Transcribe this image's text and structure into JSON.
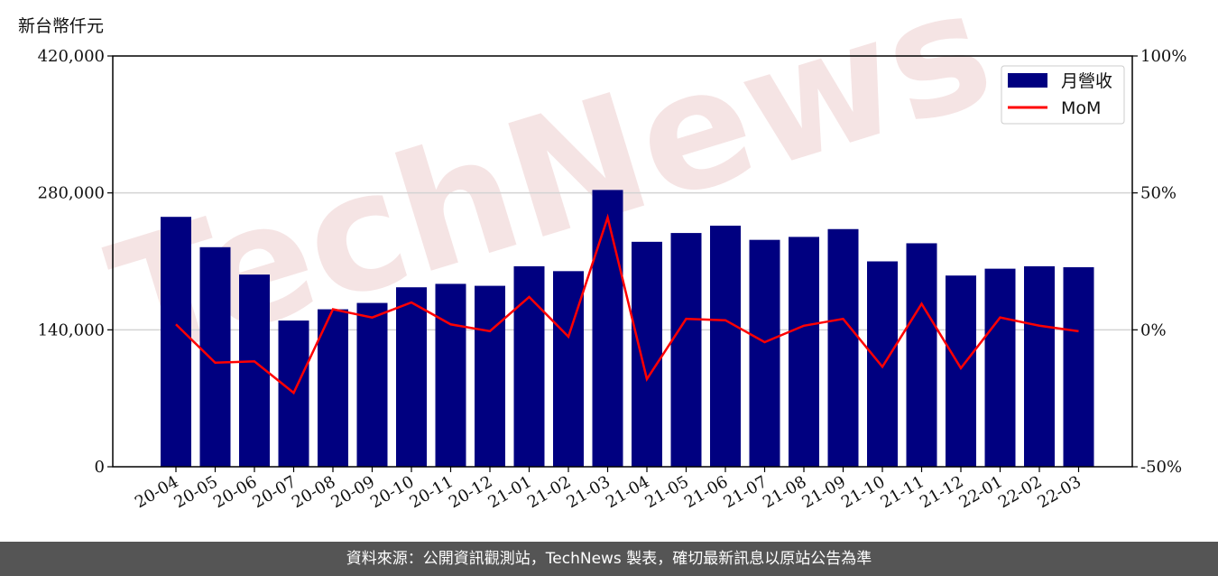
{
  "chart_data": {
    "type": "bar",
    "unit_label": "新台幣仟元",
    "categories": [
      "20-04",
      "20-05",
      "20-06",
      "20-07",
      "20-08",
      "20-09",
      "20-10",
      "20-11",
      "20-12",
      "21-01",
      "21-02",
      "21-03",
      "21-04",
      "21-05",
      "21-06",
      "21-07",
      "21-08",
      "21-09",
      "21-10",
      "21-11",
      "21-12",
      "22-01",
      "22-02",
      "22-03"
    ],
    "series": [
      {
        "name": "月營收",
        "type": "bar",
        "axis": "left",
        "color": "#000080",
        "values": [
          255500,
          224500,
          196500,
          149500,
          161000,
          167500,
          183500,
          187000,
          185000,
          205000,
          200000,
          283000,
          230000,
          239000,
          246500,
          232000,
          235000,
          243000,
          210000,
          228500,
          195500,
          202500,
          205000,
          204000
        ]
      },
      {
        "name": "MoM",
        "type": "line",
        "axis": "right",
        "color": "#ff0000",
        "values": [
          2,
          -12,
          -11.5,
          -23,
          7.5,
          4.5,
          10,
          2,
          -0.5,
          12,
          -2.5,
          41,
          -18,
          4,
          3.5,
          -4.5,
          1.5,
          4,
          -13.5,
          9.5,
          -14,
          4.5,
          1.5,
          -0.5
        ]
      }
    ],
    "y_left": {
      "ylim": [
        0,
        420000
      ],
      "ticks": [
        "0",
        "140,000",
        "280,000",
        "420,000"
      ]
    },
    "y_right": {
      "ylim": [
        -50,
        100
      ],
      "ticks": [
        "-50%",
        "0%",
        "50%",
        "100%"
      ]
    },
    "grid": "horizontal",
    "legend_position": "top-right",
    "watermark": "TechNews"
  },
  "footer": {
    "text": "資料來源：公開資訊觀測站，TechNews 製表，確切最新訊息以原站公告為準"
  }
}
